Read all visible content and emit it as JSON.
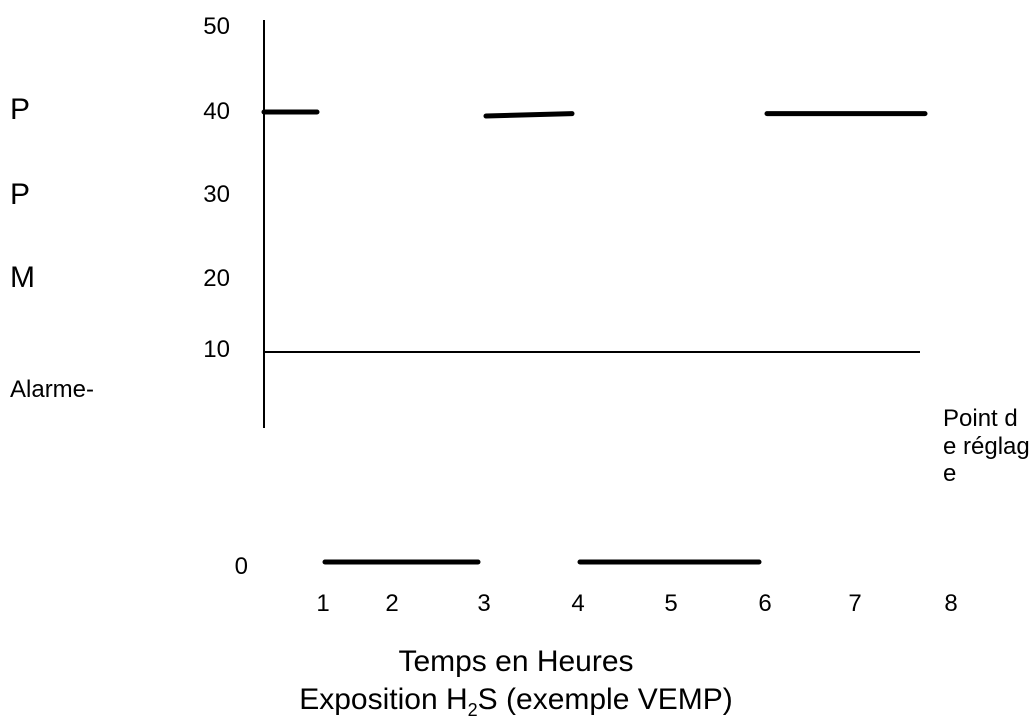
{
  "chart_data": {
    "type": "line",
    "ylabel_letters": [
      "P",
      "P",
      "M"
    ],
    "y_ticks": [
      "50",
      "40",
      "30",
      "20",
      "10",
      "0"
    ],
    "x_ticks": [
      "1",
      "2",
      "3",
      "4",
      "5",
      "6",
      "7",
      "8"
    ],
    "xlabel": "Temps en Heures",
    "title_main": "Exposition H",
    "title_sub": "2",
    "title_rest": "S (exemple VEMP)",
    "alarm_label": "Alarme-",
    "setpoint_label": "Point de réglage",
    "alarm_threshold": 10,
    "ylim": [
      0,
      50
    ],
    "xlim": [
      0,
      8
    ],
    "series": [
      {
        "segments": [
          {
            "x": [
              0,
              1
            ],
            "y": [
              40,
              40
            ]
          },
          {
            "x": [
              1,
              3
            ],
            "y": [
              0,
              0
            ]
          },
          {
            "x": [
              3,
              4
            ],
            "y": [
              39.5,
              39.8
            ]
          },
          {
            "x": [
              4,
              6
            ],
            "y": [
              0,
              0
            ]
          },
          {
            "x": [
              6,
              8
            ],
            "y": [
              39.8,
              39.8
            ]
          }
        ]
      }
    ]
  }
}
